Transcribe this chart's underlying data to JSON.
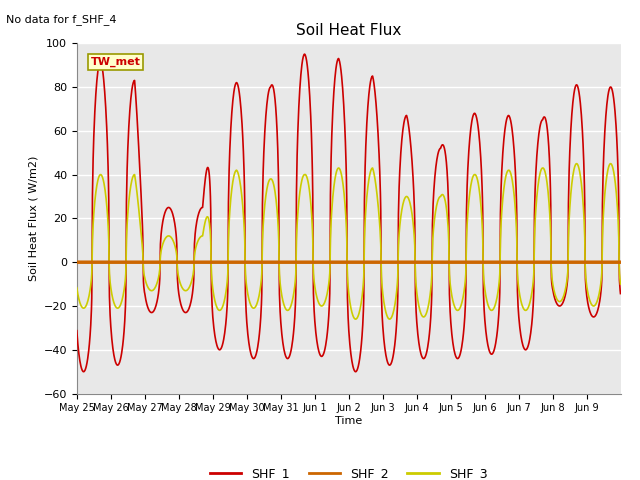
{
  "title": "Soil Heat Flux",
  "top_left_text": "No data for f_SHF_4",
  "ylabel": "Soil Heat Flux ( W/m2)",
  "xlabel": "Time",
  "box_label": "TW_met",
  "ylim": [
    -60,
    100
  ],
  "yticks": [
    -60,
    -40,
    -20,
    0,
    20,
    40,
    60,
    80,
    100
  ],
  "xtick_labels": [
    "May 25",
    "May 26",
    "May 27",
    "May 28",
    "May 29",
    "May 30",
    "May 31",
    "Jun 1",
    "Jun 2",
    "Jun 3",
    "Jun 4",
    "Jun 5",
    "Jun 6",
    "Jun 7",
    "Jun 8",
    "Jun 9"
  ],
  "legend_entries": [
    "SHF_1",
    "SHF_2",
    "SHF_3"
  ],
  "shf1_color": "#cc0000",
  "shf2_color": "#cc6600",
  "shf3_color": "#cccc00",
  "fig_bg_color": "#ffffff",
  "plot_bg_color": "#e8e8e8",
  "grid_color": "#ffffff",
  "box_facecolor": "#ffffcc",
  "box_edgecolor": "#999900",
  "box_textcolor": "#cc0000"
}
